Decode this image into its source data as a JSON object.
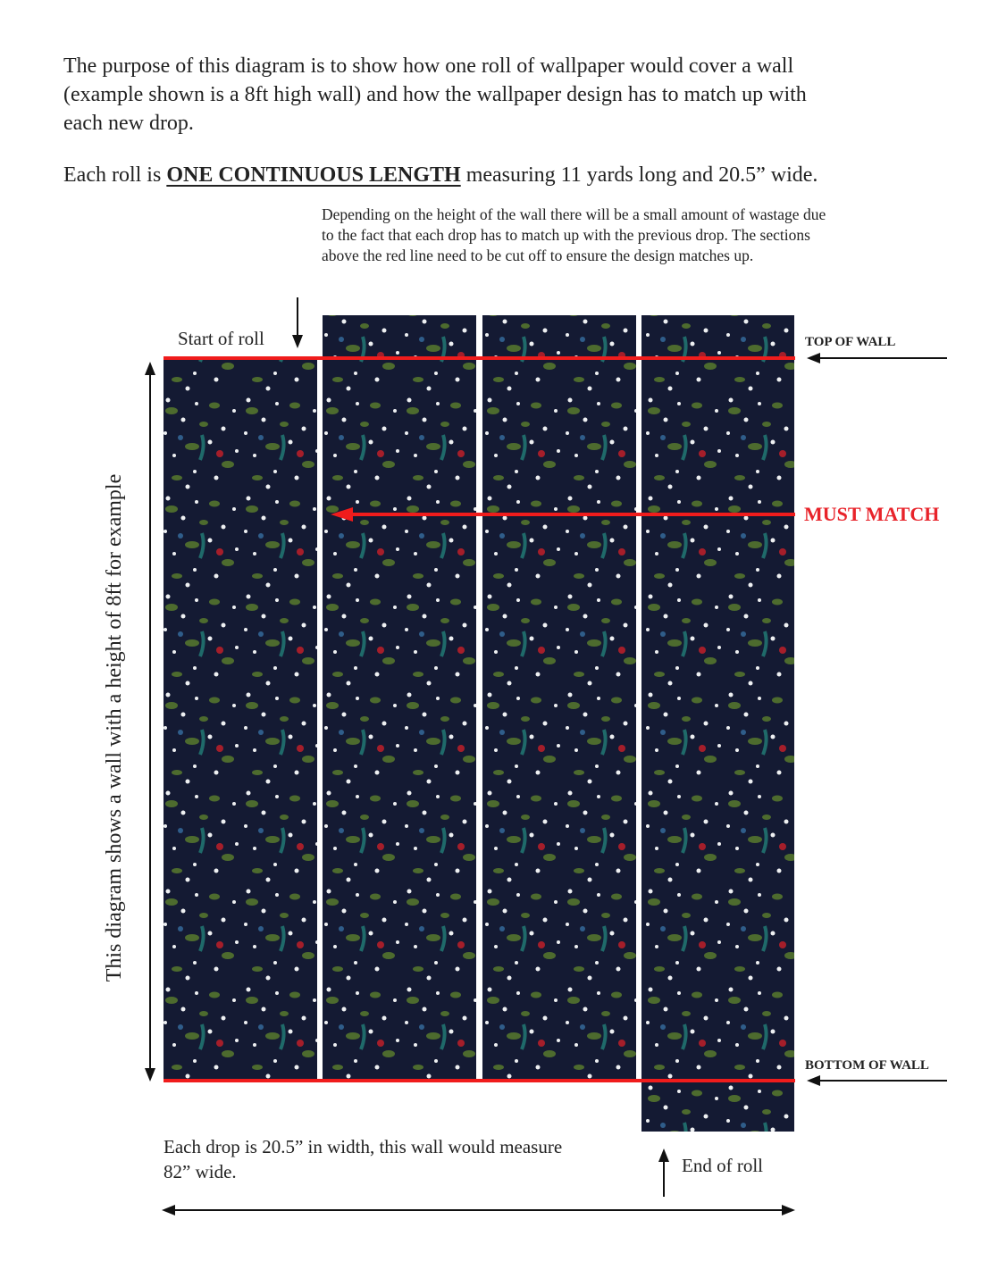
{
  "intro": {
    "text": "The purpose of this diagram is to show how one roll of wallpaper would cover a wall (example shown is a 8ft high wall) and how the wallpaper design has to match up with each new drop."
  },
  "roll": {
    "before": "Each roll is",
    "emphasis": "ONE CONTINUOUS LENGTH",
    "after": "measuring 11 yards long and 20.5” wide."
  },
  "note": "Depending on the height of the wall there will be a small amount of wastage due to the fact that each drop has to match up with the previous drop. The sections above the red line need to be cut off to ensure the design matches up.",
  "labels": {
    "start_of_roll": "Start of roll",
    "top_of_wall": "TOP OF WALL",
    "must_match": "MUST MATCH",
    "bottom_of_wall": "BOTTOM OF WALL",
    "end_of_roll": "End of roll",
    "vertical": "This diagram shows a wall with a height of 8ft for example",
    "width_note": "Each drop is 20.5” in width, this wall would measure 82” wide."
  }
}
